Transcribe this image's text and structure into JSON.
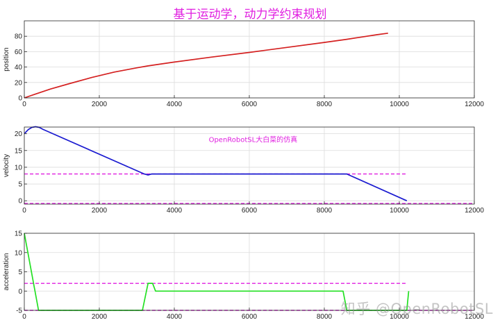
{
  "title": "基于运动学，动力学约束规划",
  "watermark": "知乎 @OpenRobotSL",
  "colors": {
    "title": "#e01ee0",
    "position": "#d42020",
    "velocity": "#1a1ad0",
    "acceleration": "#22e022",
    "limit": "#e01ee0"
  },
  "chart_data": [
    {
      "type": "line",
      "ylabel": "position",
      "xlim": [
        0,
        12000
      ],
      "ylim": [
        0,
        100
      ],
      "xticks": [
        0,
        2000,
        4000,
        6000,
        8000,
        10000,
        12000
      ],
      "yticks": [
        0,
        20,
        40,
        60,
        80
      ],
      "grid": true,
      "series": [
        {
          "color": "#d42020",
          "x": [
            0,
            300,
            700,
            1200,
            1800,
            2400,
            3000,
            3300,
            4000,
            5000,
            6000,
            7000,
            8000,
            8600,
            9000,
            9400,
            9700
          ],
          "y": [
            0,
            5,
            11.5,
            18.5,
            26.5,
            33.5,
            39,
            41.5,
            46.5,
            53,
            59,
            65.5,
            72,
            76,
            79,
            82,
            84
          ]
        }
      ]
    },
    {
      "type": "line",
      "ylabel": "velocity",
      "xlim": [
        0,
        12000
      ],
      "ylim": [
        -1,
        22
      ],
      "xticks": [
        0,
        2000,
        4000,
        6000,
        8000,
        10000,
        12000
      ],
      "yticks": [
        0,
        5,
        10,
        15,
        20
      ],
      "grid": true,
      "annotation": {
        "text": "OpenRobotSL大白菜的仿真",
        "x": 6100,
        "y": 17.5
      },
      "series": [
        {
          "color": "#1a1ad0",
          "x": [
            0,
            100,
            200,
            300,
            400,
            500,
            3200,
            3300,
            3400,
            8600,
            10200
          ],
          "y": [
            20,
            21.2,
            21.9,
            22.1,
            21.9,
            21.3,
            8,
            7.7,
            8,
            8,
            0
          ]
        }
      ],
      "limits": [
        {
          "y": 8,
          "x": [
            0,
            10200
          ],
          "color": "#e01ee0",
          "dashed": true
        },
        {
          "y": -0.8,
          "x": [
            0,
            12000
          ],
          "color": "#e01ee0",
          "dashed": true
        }
      ]
    },
    {
      "type": "line",
      "ylabel": "acceleration",
      "xlim": [
        0,
        12000
      ],
      "ylim": [
        -5,
        15
      ],
      "xticks": [
        0,
        2000,
        4000,
        6000,
        8000,
        10000,
        12000
      ],
      "yticks": [
        -5,
        0,
        5,
        10,
        15
      ],
      "grid": true,
      "series": [
        {
          "color": "#22e022",
          "x": [
            0,
            380,
            3150,
            3300,
            3420,
            3500,
            8500,
            8600,
            10200,
            10250
          ],
          "y": [
            15,
            -5,
            -5,
            2,
            2,
            0,
            0,
            -5,
            -5,
            0
          ]
        }
      ],
      "limits": [
        {
          "y": 2,
          "x": [
            0,
            10200
          ],
          "color": "#e01ee0",
          "dashed": true
        },
        {
          "y": -5,
          "x": [
            0,
            12000
          ],
          "color": "#e01ee0",
          "dashed": true
        }
      ]
    }
  ]
}
